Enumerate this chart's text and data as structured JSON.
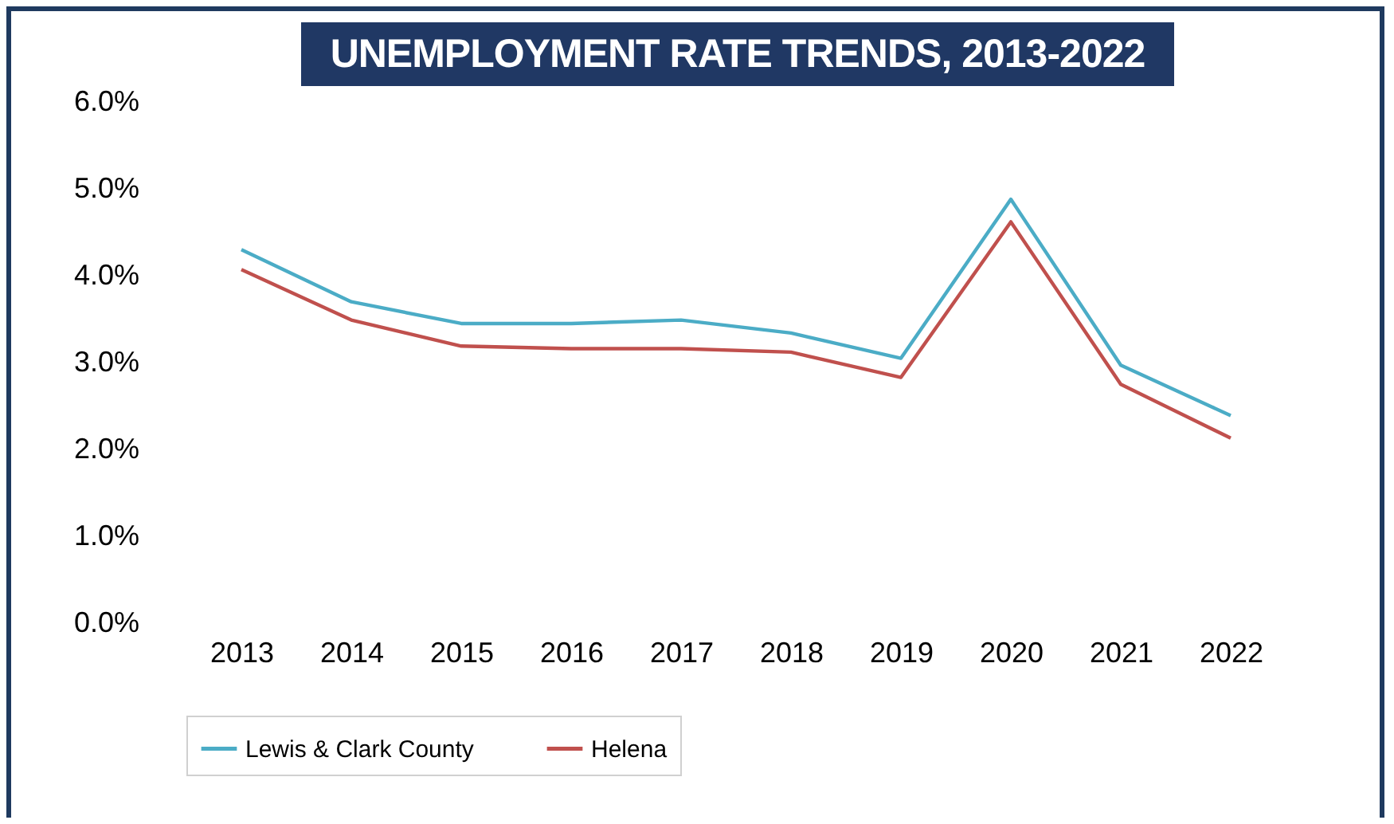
{
  "chart_data": {
    "type": "line",
    "title": "UNEMPLOYMENT RATE TRENDS, 2013-2022",
    "categories": [
      "2013",
      "2014",
      "2015",
      "2016",
      "2017",
      "2018",
      "2019",
      "2020",
      "2021",
      "2022"
    ],
    "series": [
      {
        "name": "Lewis & Clark County",
        "color": "#4bacc6",
        "values": [
          4.3,
          3.7,
          3.45,
          3.45,
          3.49,
          3.34,
          3.05,
          4.88,
          2.97,
          2.39
        ]
      },
      {
        "name": "Helena",
        "color": "#c0504d",
        "values": [
          4.07,
          3.49,
          3.19,
          3.16,
          3.16,
          3.12,
          2.83,
          4.62,
          2.75,
          2.13
        ]
      }
    ],
    "ylim": [
      0,
      6
    ],
    "yticks": [
      {
        "value": 0,
        "label": "0.0%"
      },
      {
        "value": 1,
        "label": "1.0%"
      },
      {
        "value": 2,
        "label": "2.0%"
      },
      {
        "value": 3,
        "label": "3.0%"
      },
      {
        "value": 4,
        "label": "4.0%"
      },
      {
        "value": 5,
        "label": "5.0%"
      },
      {
        "value": 6,
        "label": "6.0%"
      }
    ],
    "grid": false,
    "legend": "bottom",
    "marker": "none",
    "line_style": "solid"
  }
}
